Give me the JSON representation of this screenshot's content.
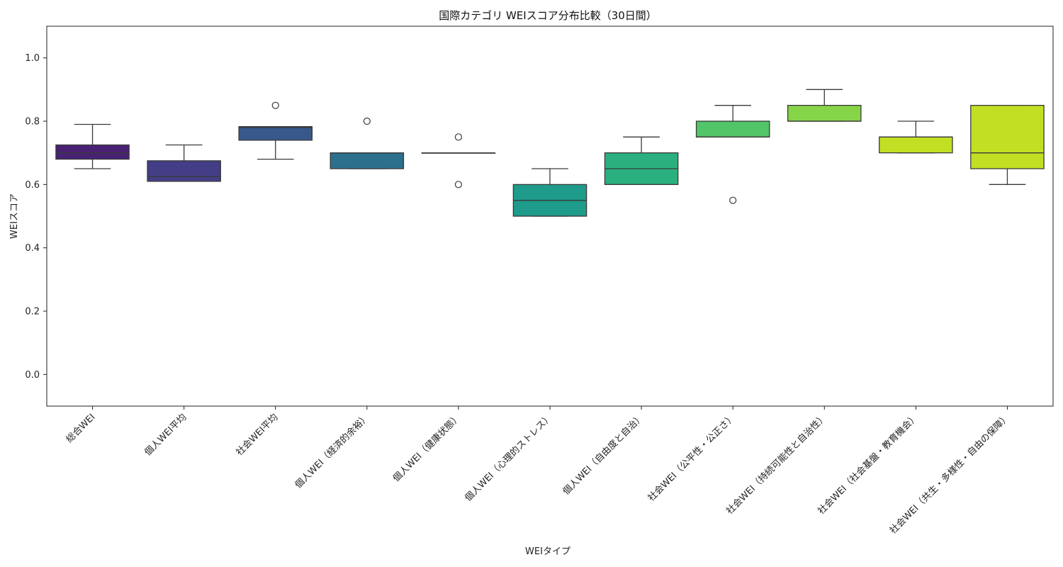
{
  "chart_data": {
    "type": "box",
    "title": "国際カテゴリ WEIスコア分布比較（30日間）",
    "xlabel": "WEIタイプ",
    "ylabel": "WEIスコア",
    "ylim": [
      -0.1,
      1.1
    ],
    "yticks": [
      "0.0",
      "0.2",
      "0.4",
      "0.6",
      "0.8",
      "1.0"
    ],
    "grid": false,
    "categories": [
      "総合WEI",
      "個人WEI平均",
      "社会WEI平均",
      "個人WEI（経済的余裕）",
      "個人WEI（健康状態）",
      "個人WEI（心理的ストレス）",
      "個人WEI（自由度と自治）",
      "社会WEI（公平性・公正さ）",
      "社会WEI（持続可能性と自治性）",
      "社会WEI（社会基盤・教育機会）",
      "社会WEI（共生・多様性・自由の保障）"
    ],
    "boxes": [
      {
        "whislo": 0.65,
        "q1": 0.68,
        "med": 0.7,
        "q3": 0.725,
        "whishi": 0.79,
        "fliers": [],
        "color": "#482173"
      },
      {
        "whislo": 0.61,
        "q1": 0.61,
        "med": 0.625,
        "q3": 0.675,
        "whishi": 0.725,
        "fliers": [],
        "color": "#433e85"
      },
      {
        "whislo": 0.68,
        "q1": 0.74,
        "med": 0.78,
        "q3": 0.783,
        "whishi": 0.783,
        "fliers": [
          0.85
        ],
        "color": "#38588c"
      },
      {
        "whislo": 0.65,
        "q1": 0.65,
        "med": 0.7,
        "q3": 0.7,
        "whishi": 0.7,
        "fliers": [
          0.8
        ],
        "color": "#2d708e"
      },
      {
        "whislo": 0.7,
        "q1": 0.7,
        "med": 0.7,
        "q3": 0.7,
        "whishi": 0.7,
        "fliers": [
          0.75,
          0.6
        ],
        "color": "#25858e"
      },
      {
        "whislo": 0.5,
        "q1": 0.5,
        "med": 0.55,
        "q3": 0.6,
        "whishi": 0.65,
        "fliers": [],
        "color": "#1e9b8a"
      },
      {
        "whislo": 0.6,
        "q1": 0.6,
        "med": 0.65,
        "q3": 0.7,
        "whishi": 0.75,
        "fliers": [],
        "color": "#2ab07f"
      },
      {
        "whislo": 0.75,
        "q1": 0.75,
        "med": 0.75,
        "q3": 0.8,
        "whishi": 0.85,
        "fliers": [
          0.55
        ],
        "color": "#52c569"
      },
      {
        "whislo": 0.8,
        "q1": 0.8,
        "med": 0.8,
        "q3": 0.85,
        "whishi": 0.9,
        "fliers": [],
        "color": "#86d549"
      },
      {
        "whislo": 0.7,
        "q1": 0.7,
        "med": 0.75,
        "q3": 0.75,
        "whishi": 0.8,
        "fliers": [],
        "color": "#c2df23"
      },
      {
        "whislo": 0.6,
        "q1": 0.65,
        "med": 0.7,
        "q3": 0.85,
        "whishi": 0.85,
        "fliers": [],
        "color": "#c2df23"
      }
    ]
  }
}
